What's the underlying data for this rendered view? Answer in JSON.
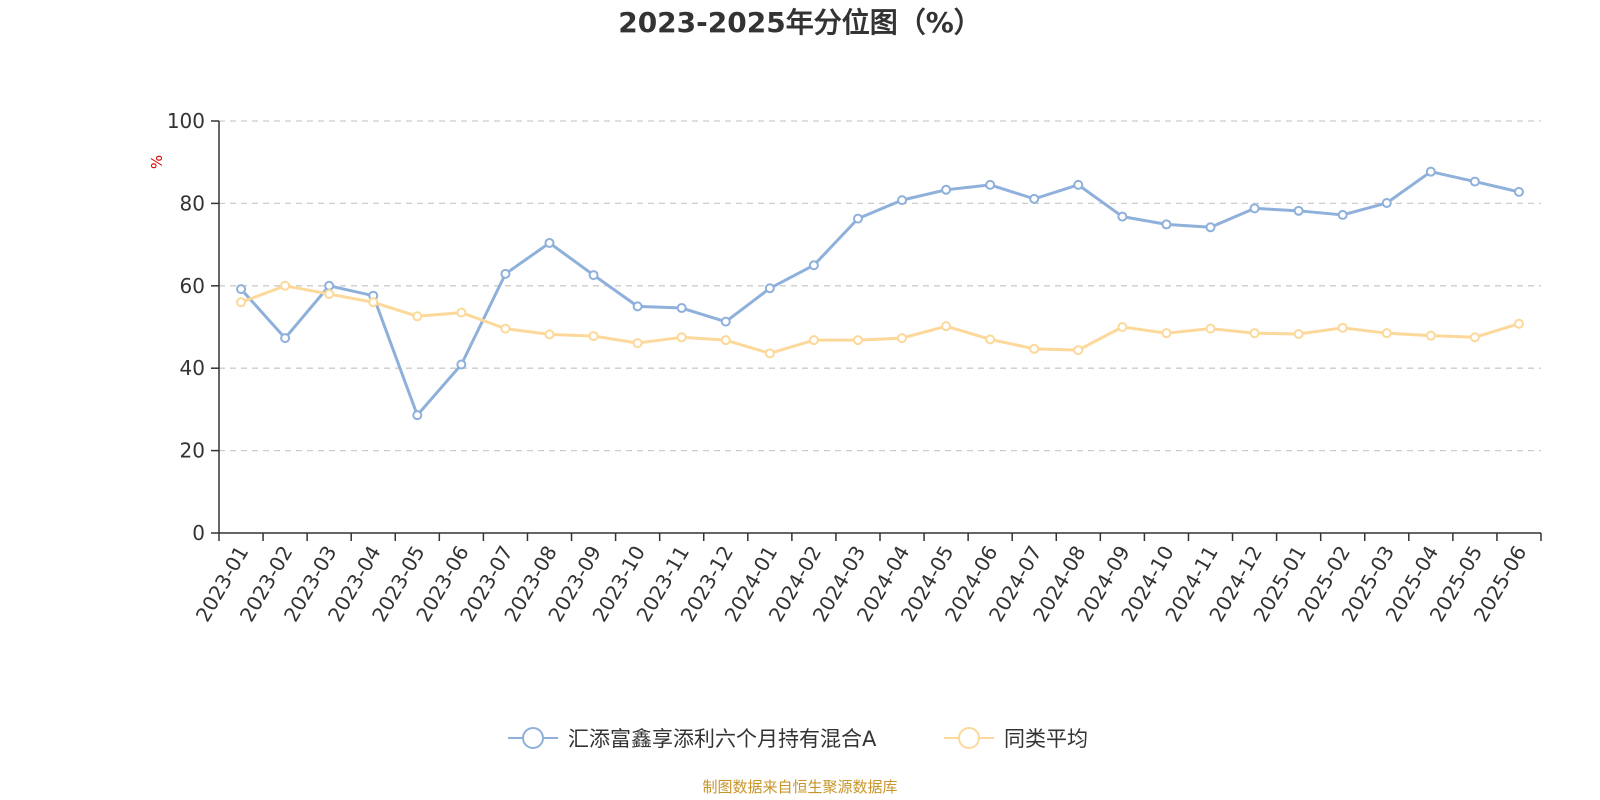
{
  "chart_data": {
    "type": "line",
    "title": "2023-2025年分位图（%）",
    "ylabel": "%",
    "xlabel": "",
    "ylim": [
      0,
      100
    ],
    "yticks": [
      0,
      20,
      40,
      60,
      80,
      100
    ],
    "grid": true,
    "legend_position": "bottom",
    "categories": [
      "2023-01",
      "2023-02",
      "2023-03",
      "2023-04",
      "2023-05",
      "2023-06",
      "2023-07",
      "2023-08",
      "2023-09",
      "2023-10",
      "2023-11",
      "2023-12",
      "2024-01",
      "2024-02",
      "2024-03",
      "2024-04",
      "2024-05",
      "2024-06",
      "2024-07",
      "2024-08",
      "2024-09",
      "2024-10",
      "2024-11",
      "2024-12",
      "2025-01",
      "2025-02",
      "2025-03",
      "2025-04",
      "2025-05",
      "2025-06"
    ],
    "series": [
      {
        "name": "汇添富鑫享添利六个月持有混合A",
        "color": "#8eb0db",
        "values": [
          59.2,
          47.3,
          60.0,
          57.6,
          28.6,
          40.9,
          62.9,
          70.4,
          62.6,
          55.0,
          54.6,
          51.3,
          59.4,
          65.0,
          76.3,
          80.8,
          83.3,
          84.5,
          81.1,
          84.5,
          76.8,
          74.9,
          74.2,
          78.8,
          78.2,
          77.2,
          80.1,
          87.7,
          85.3,
          82.8
        ]
      },
      {
        "name": "同类平均",
        "color": "#fcd99a",
        "values": [
          56.0,
          60.0,
          58.0,
          56.0,
          52.6,
          53.5,
          49.6,
          48.2,
          47.8,
          46.1,
          47.5,
          46.8,
          43.6,
          46.8,
          46.8,
          47.3,
          50.2,
          47.0,
          44.7,
          44.4,
          50.0,
          48.5,
          49.6,
          48.5,
          48.3,
          49.8,
          48.5,
          47.9,
          47.5,
          50.8
        ]
      }
    ]
  },
  "source_text": "制图数据来自恒生聚源数据库"
}
